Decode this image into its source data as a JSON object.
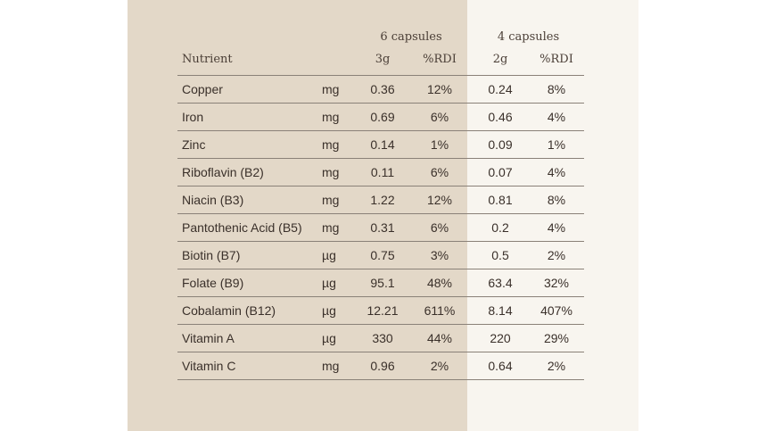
{
  "group_headers": {
    "six": "6 capsules",
    "four": "4 capsules"
  },
  "column_headers": {
    "nutrient": "Nutrient",
    "six_amount": "3g",
    "six_rdi": "%RDI",
    "four_amount": "2g",
    "four_rdi": "%RDI"
  },
  "rows": [
    {
      "name": "Copper",
      "unit": "mg",
      "six_amount": "0.36",
      "six_rdi": "12%",
      "four_amount": "0.24",
      "four_rdi": "8%"
    },
    {
      "name": "Iron",
      "unit": "mg",
      "six_amount": "0.69",
      "six_rdi": "6%",
      "four_amount": "0.46",
      "four_rdi": "4%"
    },
    {
      "name": "Zinc",
      "unit": "mg",
      "six_amount": "0.14",
      "six_rdi": "1%",
      "four_amount": "0.09",
      "four_rdi": "1%"
    },
    {
      "name": "Riboflavin (B2)",
      "unit": "mg",
      "six_amount": "0.11",
      "six_rdi": "6%",
      "four_amount": "0.07",
      "four_rdi": "4%"
    },
    {
      "name": "Niacin (B3)",
      "unit": "mg",
      "six_amount": "1.22",
      "six_rdi": "12%",
      "four_amount": "0.81",
      "four_rdi": "8%"
    },
    {
      "name": "Pantothenic Acid (B5)",
      "unit": "mg",
      "six_amount": "0.31",
      "six_rdi": "6%",
      "four_amount": "0.2",
      "four_rdi": "4%"
    },
    {
      "name": "Biotin (B7)",
      "unit": "µg",
      "six_amount": "0.75",
      "six_rdi": "3%",
      "four_amount": "0.5",
      "four_rdi": "2%"
    },
    {
      "name": "Folate (B9)",
      "unit": "µg",
      "six_amount": "95.1",
      "six_rdi": "48%",
      "four_amount": "63.4",
      "four_rdi": "32%"
    },
    {
      "name": "Cobalamin (B12)",
      "unit": "µg",
      "six_amount": "12.21",
      "six_rdi": "611%",
      "four_amount": "8.14",
      "four_rdi": "407%"
    },
    {
      "name": "Vitamin A",
      "unit": "µg",
      "six_amount": "330",
      "six_rdi": "44%",
      "four_amount": "220",
      "four_rdi": "29%"
    },
    {
      "name": "Vitamin C",
      "unit": "mg",
      "six_amount": "0.96",
      "six_rdi": "2%",
      "four_amount": "0.64",
      "four_rdi": "2%"
    }
  ],
  "colors": {
    "left_panel": "#e3d8c8",
    "right_panel": "#f8f5ef",
    "text": "#3a302a",
    "rule": "#8a8178"
  }
}
